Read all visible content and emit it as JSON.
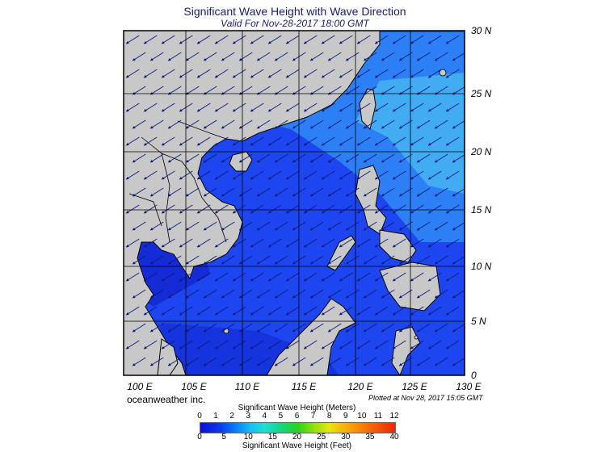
{
  "title": "Significant Wave Height with Wave Direction",
  "subtitle": "Valid For Nov-28-2017 18:00 GMT",
  "map": {
    "region": "South China Sea",
    "lon_range": [
      98,
      130
    ],
    "lat_range": [
      0,
      30
    ],
    "lat_labels": [
      "30 N",
      "25 N",
      "20 N",
      "15 N",
      "10 N",
      "5 N",
      "0"
    ],
    "lon_labels": [
      "100 E",
      "105 E",
      "110 E",
      "115 E",
      "120 E",
      "125 E",
      "130 E"
    ],
    "colors": {
      "land": "#c8c8c8",
      "sea_low": "#1e3cf0",
      "sea_mid": "#2d7df5",
      "sea_high": "#46b8f0",
      "arrows": "#0c1a7a",
      "grid": "#000000"
    }
  },
  "credit": "oceanweather inc.",
  "plotted_note": "Plotted at Nov 28, 2017 15:05 GMT",
  "legend": {
    "meters_title": "Significant Wave Height (Meters)",
    "feet_title": "Significant Wave Height (Feet)",
    "meters_ticks": [
      "0",
      "1",
      "2",
      "3",
      "4",
      "5",
      "6",
      "7",
      "8",
      "9",
      "10",
      "11",
      "12"
    ],
    "feet_ticks": [
      "0",
      "5",
      "10",
      "15",
      "20",
      "25",
      "30",
      "35",
      "40"
    ]
  }
}
